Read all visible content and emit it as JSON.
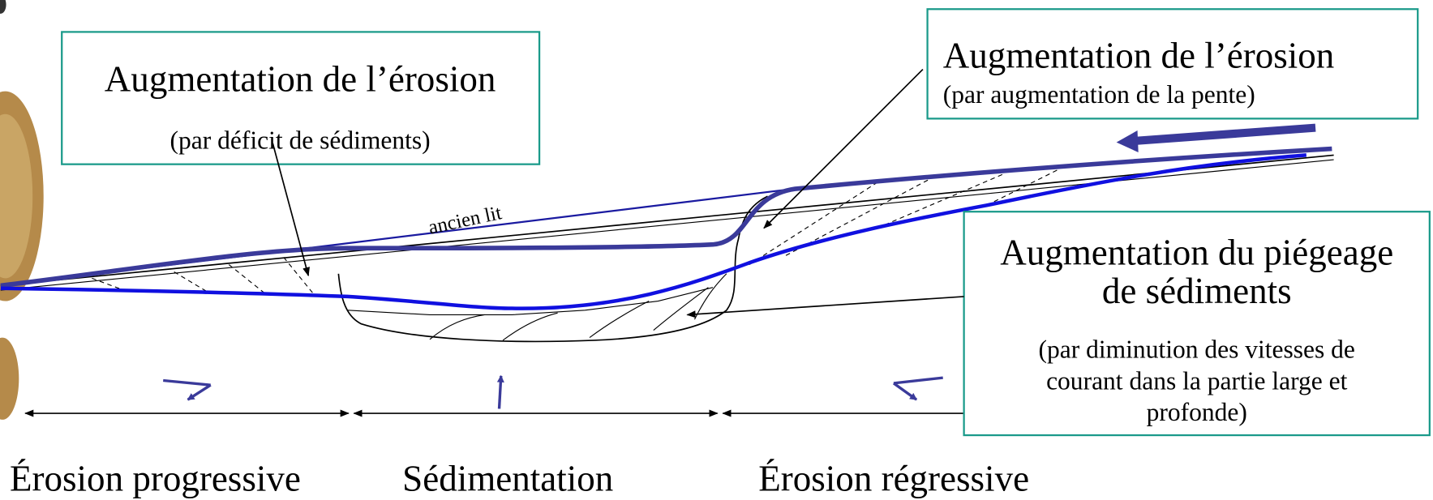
{
  "box_left": {
    "title": "Augmentation de l’érosion",
    "subtitle": "(par déficit de sédiments)"
  },
  "box_top_right": {
    "title": "Augmentation de l’érosion",
    "subtitle": "(par augmentation de la pente)"
  },
  "box_right": {
    "title_lines": [
      "Augmentation du piégeage",
      "de sédiments"
    ],
    "subtitle_lines": [
      "(par diminution des vitesses de",
      "courant dans la partie large et",
      "profonde)"
    ]
  },
  "old_bed_label": "ancien lit",
  "zones": [
    "Érosion progressive",
    "Sédimentation",
    "Érosion régressive"
  ]
}
